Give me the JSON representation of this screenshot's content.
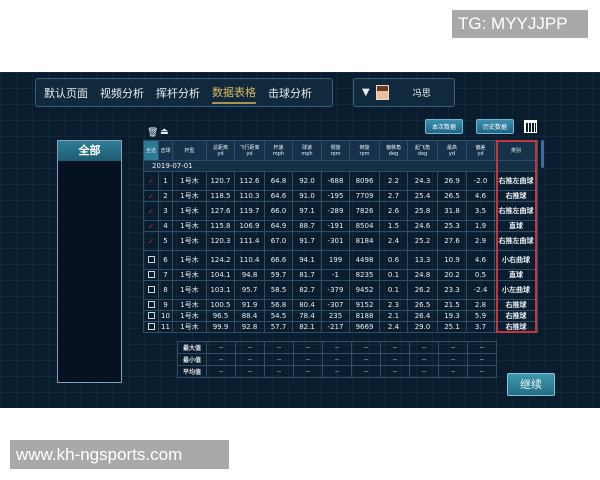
{
  "watermarks": {
    "top": "TG: MYYJJPP",
    "bottom": "www.kh-ngsports.com"
  },
  "nav": {
    "tabs": [
      "默认页面",
      "视频分析",
      "挥杆分析",
      "数据表格",
      "击球分析"
    ],
    "active": "数据表格"
  },
  "user": {
    "name": "冯思",
    "dropdown_icon": "triangle-down"
  },
  "left_panel": {
    "all_label": "全部"
  },
  "toolbar": {
    "current_data": "本次数据",
    "history_data": "历史数据",
    "delete_icon": "trash",
    "export_icon": "export",
    "calendar_icon": "calendar"
  },
  "table": {
    "headers": [
      [
        "全选",
        ""
      ],
      [
        "击球",
        ""
      ],
      [
        "杆型",
        ""
      ],
      [
        "总距离",
        "yd"
      ],
      [
        "飞行距离",
        "yd"
      ],
      [
        "杆速",
        "mph"
      ],
      [
        "球速",
        "mph"
      ],
      [
        "侧旋",
        "rpm"
      ],
      [
        "倒旋",
        "rpm"
      ],
      [
        "偏移角",
        "deg"
      ],
      [
        "起飞角",
        "deg"
      ],
      [
        "最高",
        "yd"
      ],
      [
        "偏差",
        "yd"
      ],
      [
        "类别",
        ""
      ]
    ],
    "date": "2019-07-01",
    "rows": [
      {
        "checked": true,
        "cells": [
          "1",
          "1号木",
          "120.7",
          "112.6",
          "64.8",
          "92.0",
          "-688",
          "8096",
          "2.2",
          "24.3",
          "26.9",
          "-2.0",
          "右推左曲球"
        ]
      },
      {
        "checked": true,
        "cells": [
          "2",
          "1号木",
          "118.5",
          "110.3",
          "64.6",
          "91.0",
          "-195",
          "7709",
          "2.7",
          "25.4",
          "26.5",
          "4.6",
          "右推球"
        ]
      },
      {
        "checked": true,
        "cells": [
          "3",
          "1号木",
          "127.6",
          "119.7",
          "66.0",
          "97.1",
          "-289",
          "7826",
          "2.6",
          "25.8",
          "31.8",
          "3.5",
          "右推左曲球"
        ]
      },
      {
        "checked": true,
        "cells": [
          "4",
          "1号木",
          "115.8",
          "106.9",
          "64.9",
          "88.7",
          "-191",
          "8504",
          "1.5",
          "24.6",
          "25.3",
          "1.9",
          "直球"
        ]
      },
      {
        "checked": true,
        "cells": [
          "5",
          "1号木",
          "120.3",
          "111.4",
          "67.0",
          "91.7",
          "-301",
          "8184",
          "2.4",
          "25.2",
          "27.6",
          "2.9",
          "右推左曲球"
        ]
      },
      {
        "checked": false,
        "cells": [
          "6",
          "1号木",
          "124.2",
          "110.4",
          "66.6",
          "94.1",
          "199",
          "4498",
          "0.6",
          "13.3",
          "10.9",
          "4.6",
          "小右曲球"
        ]
      },
      {
        "checked": false,
        "cells": [
          "7",
          "1号木",
          "104.1",
          "94.8",
          "59.7",
          "81.7",
          "-1",
          "8235",
          "0.1",
          "24.8",
          "20.2",
          "0.5",
          "直球"
        ]
      },
      {
        "checked": false,
        "cells": [
          "8",
          "1号木",
          "103.1",
          "95.7",
          "58.5",
          "82.7",
          "-379",
          "9452",
          "0.1",
          "26.2",
          "23.3",
          "-2.4",
          "小左曲球"
        ]
      },
      {
        "checked": false,
        "cells": [
          "9",
          "1号木",
          "100.5",
          "91.9",
          "56.8",
          "80.4",
          "-307",
          "9152",
          "2.3",
          "26.5",
          "21.5",
          "2.8",
          "右推球"
        ]
      },
      {
        "checked": false,
        "cells": [
          "10",
          "1号木",
          "96.5",
          "88.4",
          "54.5",
          "78.4",
          "235",
          "8188",
          "2.1",
          "26.4",
          "19.3",
          "5.9",
          "右推球"
        ]
      },
      {
        "checked": false,
        "cells": [
          "11",
          "1号木",
          "99.9",
          "92.8",
          "57.7",
          "82.1",
          "-217",
          "9669",
          "2.4",
          "29.0",
          "25.1",
          "3.7",
          "右推球"
        ]
      }
    ]
  },
  "stats": {
    "rows": [
      {
        "label": "最大值",
        "values": [
          "--",
          "--",
          "--",
          "--",
          "--",
          "--",
          "--",
          "--",
          "--",
          "--"
        ]
      },
      {
        "label": "最小值",
        "values": [
          "--",
          "--",
          "--",
          "--",
          "--",
          "--",
          "--",
          "--",
          "--",
          "--"
        ]
      },
      {
        "label": "平均值",
        "values": [
          "--",
          "--",
          "--",
          "--",
          "--",
          "--",
          "--",
          "--",
          "--",
          "--"
        ]
      }
    ]
  },
  "continue_label": "继续",
  "colors": {
    "highlight_box": "#c8343c",
    "active_tab": "#d8b860",
    "check": "#a8323a"
  }
}
